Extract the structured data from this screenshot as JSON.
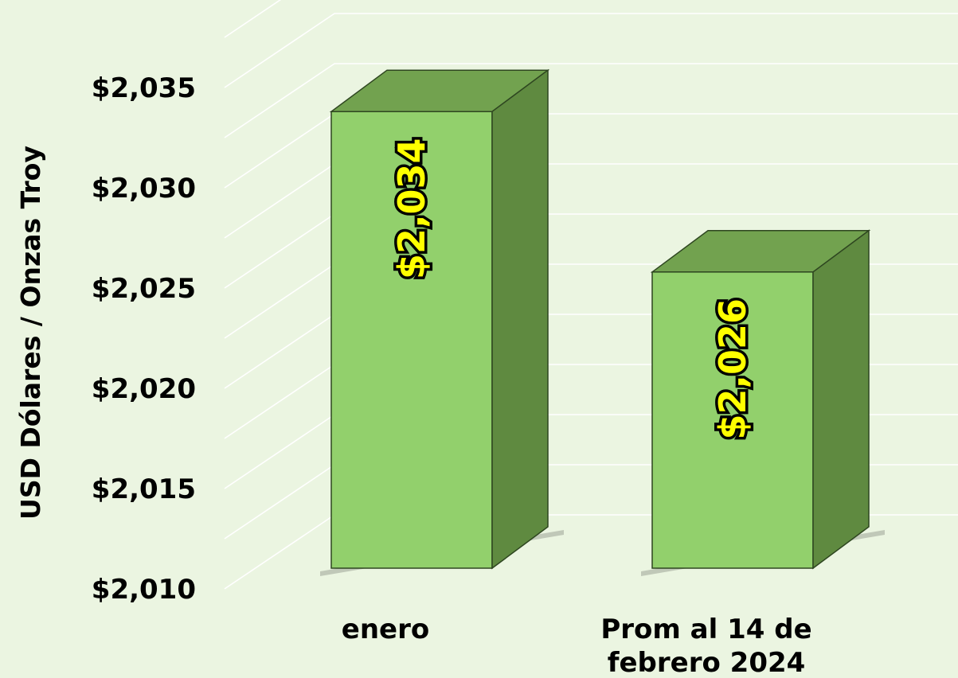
{
  "chart_data": {
    "type": "bar",
    "style": "3d-column",
    "categories": [
      "enero",
      "Prom al 14 de febrero 2024"
    ],
    "category_lines": [
      [
        "enero"
      ],
      [
        "Prom al 14 de",
        "febrero 2024"
      ]
    ],
    "values": [
      2034,
      2026
    ],
    "data_labels": [
      "$2,034",
      "$2,026"
    ],
    "ylabel": "USD Dólares / Onzas Troy",
    "ylim": [
      2010,
      2035
    ],
    "yticks": [
      2010,
      2015,
      2020,
      2025,
      2030,
      2035
    ],
    "ytick_labels": [
      "$2,010",
      "$2,015",
      "$2,020",
      "$2,025",
      "$2,030",
      "$2,035"
    ],
    "grid": true,
    "legend": "none",
    "colors": {
      "background": "#ebf5e1",
      "bar_front": "#92d06c",
      "bar_top": "#72a24f",
      "bar_side": "#5f8a40",
      "bar_outline": "#2e4620",
      "gridline": "#ffffff",
      "data_label_fill": "#ffff00",
      "data_label_stroke": "#000000"
    }
  }
}
